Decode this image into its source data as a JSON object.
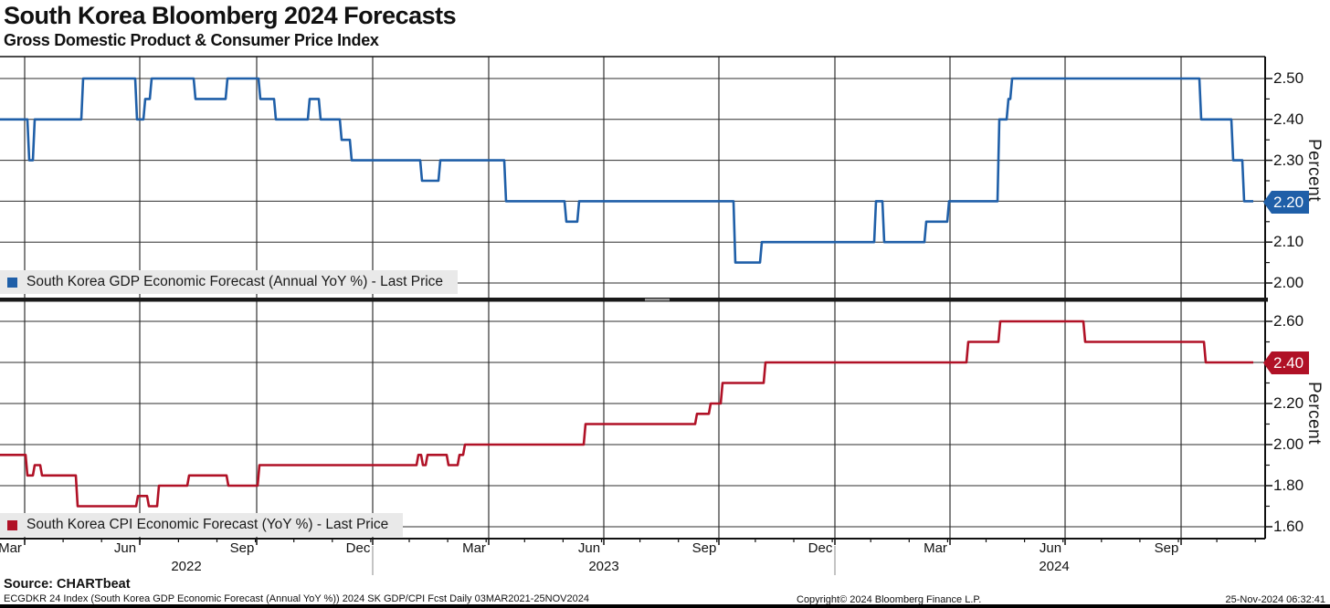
{
  "header": {
    "title": "South Korea Bloomberg 2024 Forecasts",
    "subtitle": "Gross Domestic Product & Consumer Price Index"
  },
  "footer": {
    "source": "Source: CHARTbeat",
    "index_line": "ECGDKR 24 Index (South Korea GDP Economic Forecast (Annual YoY %)) 2024 SK GDP/CPI Fcst  Daily 03MAR2021-25NOV2024",
    "copyright": "Copyright© 2024 Bloomberg Finance L.P.",
    "timestamp": "25-Nov-2024 06:32:41"
  },
  "chart_data": {
    "type": "line",
    "title": "South Korea Bloomberg 2024 Forecasts",
    "subtitle": "Gross Domestic Product & Consumer Price Index",
    "grid": true,
    "legend_position": "bottom-left-of-each-panel",
    "x_axis": {
      "month_ticks": [
        {
          "x": 27,
          "label": "Mar"
        },
        {
          "x": 153,
          "label": "Jun"
        },
        {
          "x": 281,
          "label": "Sep"
        },
        {
          "x": 408,
          "label": "Dec"
        },
        {
          "x": 535,
          "label": "Mar"
        },
        {
          "x": 661,
          "label": "Jun"
        },
        {
          "x": 787,
          "label": "Sep"
        },
        {
          "x": 914,
          "label": "Dec"
        },
        {
          "x": 1040,
          "label": "Mar"
        },
        {
          "x": 1166,
          "label": "Jun"
        },
        {
          "x": 1293,
          "label": "Sep"
        }
      ],
      "year_labels": [
        {
          "x": 204,
          "label": "2022"
        },
        {
          "x": 661,
          "label": "2023"
        },
        {
          "x": 1154,
          "label": "2024"
        }
      ],
      "year_separators_x": [
        408,
        914
      ],
      "minor_tick_spacing_px": 42.1,
      "range_note": "Mar 2022 - Nov 2024"
    },
    "panels": [
      {
        "id": "gdp",
        "legend": "South Korea GDP Economic Forecast (Annual YoY %) - Last Price",
        "color": "#1f5fa8",
        "last_price": "2.20",
        "ylabel": "Percent",
        "ylim": [
          2.0,
          2.5
        ],
        "area": {
          "top": 62,
          "bottom": 326,
          "y_at_max": 86,
          "y_at_min": 310,
          "val_max": 2.5,
          "val_min": 2.0
        },
        "yticks": [
          {
            "v": 2.5,
            "label": "2.50",
            "badge": false
          },
          {
            "v": 2.4,
            "label": "2.40",
            "badge": false
          },
          {
            "v": 2.3,
            "label": "2.30",
            "badge": false
          },
          {
            "v": 2.2,
            "label": "2.20",
            "badge": true
          },
          {
            "v": 2.1,
            "label": "2.10",
            "badge": false
          },
          {
            "v": 2.0,
            "label": "2.00",
            "badge": false
          }
        ],
        "minor_tick_step": 0.05,
        "steps_x_value": [
          [
            0,
            2.4
          ],
          [
            30,
            2.3
          ],
          [
            36,
            2.4
          ],
          [
            89,
            2.5
          ],
          [
            148,
            2.4
          ],
          [
            157,
            2.45
          ],
          [
            164,
            2.5
          ],
          [
            212,
            2.45
          ],
          [
            247,
            2.5
          ],
          [
            283,
            2.45
          ],
          [
            300,
            2.4
          ],
          [
            337,
            2.45
          ],
          [
            349,
            2.4
          ],
          [
            372,
            2.35
          ],
          [
            383,
            2.3
          ],
          [
            460,
            2.25
          ],
          [
            480,
            2.3
          ],
          [
            552,
            2.2
          ],
          [
            618,
            2.15
          ],
          [
            632,
            2.2
          ],
          [
            803,
            2.05
          ],
          [
            832,
            2.1
          ],
          [
            957,
            2.2
          ],
          [
            966,
            2.1
          ],
          [
            1012,
            2.15
          ],
          [
            1037,
            2.2
          ],
          [
            1092,
            2.4
          ],
          [
            1102,
            2.45
          ],
          [
            1106,
            2.5
          ],
          [
            1313,
            2.4
          ],
          [
            1348,
            2.3
          ],
          [
            1360,
            2.2
          ],
          [
            1372,
            2.2
          ]
        ]
      },
      {
        "id": "cpi",
        "legend": "South Korea CPI Economic Forecast (YoY %) - Last Price",
        "color": "#b01126",
        "last_price": "2.40",
        "ylabel": "Percent",
        "ylim": [
          1.6,
          2.6
        ],
        "area": {
          "top": 331,
          "bottom": 590,
          "y_at_max": 352,
          "y_at_min": 577,
          "val_max": 2.6,
          "val_min": 1.6
        },
        "yticks": [
          {
            "v": 2.6,
            "label": "2.60",
            "badge": false
          },
          {
            "v": 2.4,
            "label": "2.40",
            "badge": true
          },
          {
            "v": 2.2,
            "label": "2.20",
            "badge": false
          },
          {
            "v": 2.0,
            "label": "2.00",
            "badge": false
          },
          {
            "v": 1.8,
            "label": "1.80",
            "badge": false
          },
          {
            "v": 1.6,
            "label": "1.60",
            "badge": false
          }
        ],
        "minor_tick_step": 0.1,
        "steps_x_value": [
          [
            0,
            1.95
          ],
          [
            28,
            1.85
          ],
          [
            36,
            1.9
          ],
          [
            44,
            1.85
          ],
          [
            83,
            1.7
          ],
          [
            149,
            1.75
          ],
          [
            161,
            1.7
          ],
          [
            172,
            1.8
          ],
          [
            205,
            1.85
          ],
          [
            248,
            1.8
          ],
          [
            282,
            1.9
          ],
          [
            456,
            1.95
          ],
          [
            461,
            1.9
          ],
          [
            466,
            1.95
          ],
          [
            489,
            1.9
          ],
          [
            501,
            1.95
          ],
          [
            507,
            2.0
          ],
          [
            639,
            2.1
          ],
          [
            761,
            2.15
          ],
          [
            776,
            2.2
          ],
          [
            789,
            2.3
          ],
          [
            836,
            2.4
          ],
          [
            1058,
            2.5
          ],
          [
            1093,
            2.6
          ],
          [
            1186,
            2.5
          ],
          [
            1318,
            2.4
          ],
          [
            1372,
            2.4
          ]
        ]
      }
    ],
    "layout": {
      "axis_right_x": 1385,
      "axis_bottom_y": 590,
      "plot_left_x": 0,
      "divider": {
        "y": 326,
        "height": 4.5,
        "handle_x": 706,
        "handle_w": 27
      },
      "colors": {
        "h_grid": "#2e2e2e",
        "v_grid": "#5a5a5a",
        "axis": "#111111",
        "legend_band": "#e9e9e9",
        "divider": "#181818",
        "divider_handle": "#979797",
        "year_separator": "#888888"
      }
    }
  }
}
